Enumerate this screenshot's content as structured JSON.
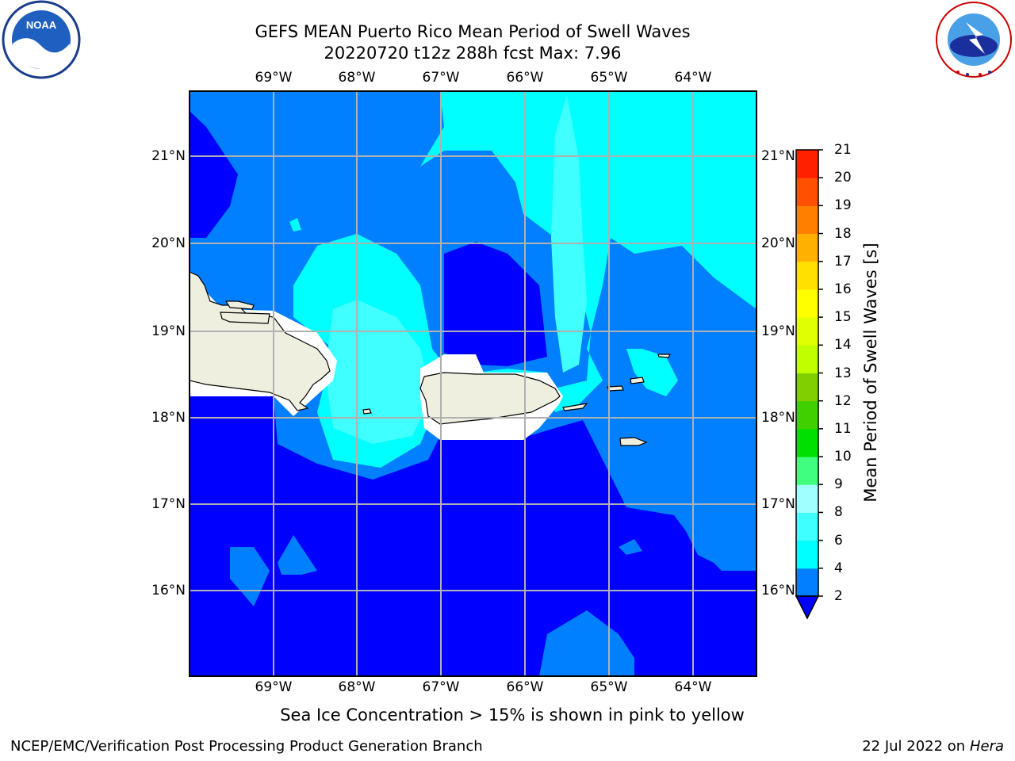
{
  "title": {
    "line1": "GEFS MEAN Puerto Rico Mean Period of Swell Waves",
    "line2": "20220720 t12z 288h fcst   Max: 7.96"
  },
  "map": {
    "lon_labels": [
      "69°W",
      "68°W",
      "67°W",
      "66°W",
      "65°W",
      "64°W"
    ],
    "lat_labels": [
      "21°N",
      "20°N",
      "19°N",
      "18°N",
      "17°N",
      "16°N"
    ],
    "fill_colors": {
      "band_2_4": "#0000ff",
      "band_4_6": "#0080ff",
      "band_6_8": "#00ffff",
      "band_8_9": "#40ffff",
      "land": "#efefe0",
      "mask": "#ffffff"
    }
  },
  "colorbar": {
    "title": "Mean Period of Swell Waves [s]",
    "ticks": [
      "2",
      "4",
      "6",
      "8",
      "9",
      "10",
      "11",
      "12",
      "13",
      "14",
      "15",
      "16",
      "17",
      "18",
      "19",
      "20",
      "21"
    ],
    "colors": [
      "#0080ff",
      "#00ffff",
      "#40ffff",
      "#a0ffff",
      "#40ff80",
      "#00e000",
      "#40d000",
      "#80d000",
      "#c0ff00",
      "#e0ff00",
      "#ffff00",
      "#ffe000",
      "#ffb000",
      "#ff8000",
      "#ff5000",
      "#ff2000",
      "#ff0000"
    ],
    "extend_color": "#0000ff"
  },
  "caption": "Sea Ice Concentration > 15% is shown in pink to yellow",
  "footer": {
    "left": "NCEP/EMC/Verification Post Processing Product Generation Branch",
    "right_prefix": "22 Jul 2022 on ",
    "right_host": "Hera"
  },
  "logos": {
    "noaa": "NOAA",
    "nws_text": "NATIONAL WEATHER SERVICE"
  }
}
